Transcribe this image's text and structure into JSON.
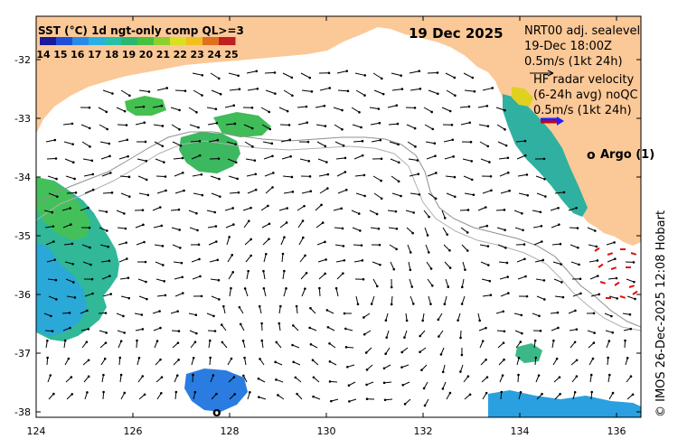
{
  "colorbar": {
    "title": "SST (°C) 1d ngt-only comp QL>=3",
    "ticks": [
      "14",
      "15",
      "16",
      "17",
      "18",
      "19",
      "20",
      "21",
      "22",
      "23",
      "24",
      "25"
    ],
    "colors": [
      "#1a1a9a",
      "#1f4fd8",
      "#2a8ae8",
      "#2ab0e0",
      "#29c0a8",
      "#2ab870",
      "#48c040",
      "#8cd030",
      "#d8e020",
      "#f0c020",
      "#e07020",
      "#c02020"
    ]
  },
  "date_label": "19 Dec 2025",
  "sealevel": {
    "line1": "NRT00 adj. sealevel",
    "line2": "19-Dec 18:00Z",
    "line3": "0.5m/s (1kt 24h)"
  },
  "hf_radar": {
    "line1": "HF radar velocity",
    "line2": "(6-24h avg) noQC",
    "line3": "0.5m/s (1kt 24h)"
  },
  "argo_label": "Argo (1)",
  "argo_marker": "o",
  "axes": {
    "x_ticks": [
      "124",
      "126",
      "128",
      "130",
      "132",
      "134",
      "136"
    ],
    "y_ticks": [
      "-32",
      "-33",
      "-34",
      "-35",
      "-36",
      "-37",
      "-38"
    ]
  },
  "credit": "© IMOS 26-Dec-2025 12:08 Hobart",
  "land_color": "#fbc897",
  "argo_color": "#ff00ff"
}
